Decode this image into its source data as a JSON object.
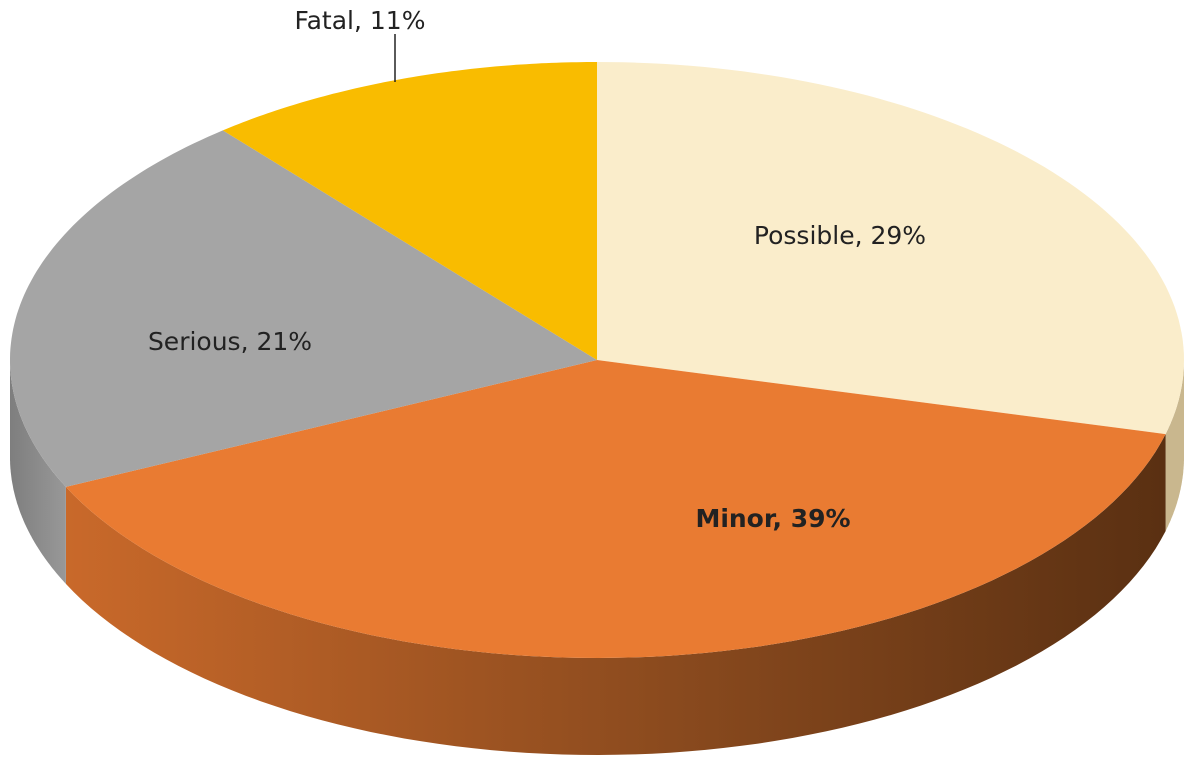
{
  "chart_data": {
    "type": "pie",
    "three_d": true,
    "values": [
      29,
      39,
      21,
      11
    ],
    "value_labels": [
      "Possible, 29%",
      "Minor, 39%",
      "Serious, 21%",
      "Fatal, 11%"
    ],
    "colors": [
      "#FAEDCB",
      "#E97B32",
      "#A5A5A5",
      "#F9BC00"
    ],
    "start_angle": 0,
    "direction": "clockwise"
  }
}
